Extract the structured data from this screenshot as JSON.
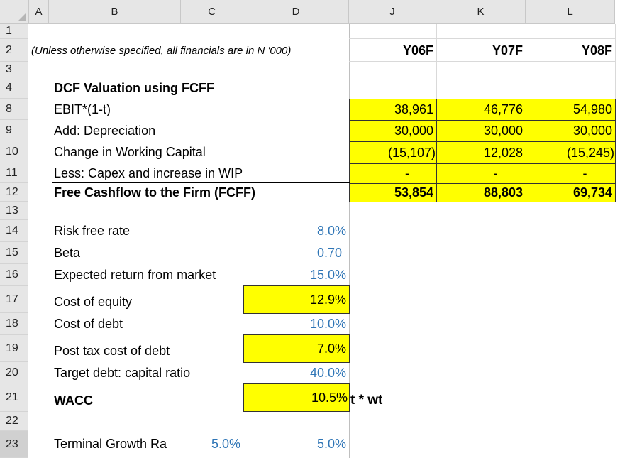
{
  "columns": [
    "A",
    "B",
    "C",
    "D",
    "J",
    "K",
    "L"
  ],
  "rows": [
    "1",
    "2",
    "3",
    "4",
    "8",
    "9",
    "10",
    "11",
    "12",
    "13",
    "14",
    "15",
    "16",
    "17",
    "18",
    "19",
    "20",
    "21",
    "22",
    "23"
  ],
  "note": "(Unless otherwise specified, all financials are in N '000)",
  "years": [
    "Y06F",
    "Y07F",
    "Y08F"
  ],
  "section_title": "DCF Valuation using FCFF",
  "fcff_rows": [
    {
      "label": "EBIT*(1-t)",
      "values": [
        "38,961",
        "46,776",
        "54,980"
      ]
    },
    {
      "label": "Add: Depreciation",
      "values": [
        "30,000",
        "30,000",
        "30,000"
      ]
    },
    {
      "label": "Change in Working Capital",
      "values": [
        "(15,107)",
        "12,028",
        "(15,245)"
      ]
    },
    {
      "label": "Less: Capex and increase in WIP",
      "values": [
        "-",
        "-",
        "-"
      ]
    },
    {
      "label": "Free Cashflow to the Firm (FCFF)",
      "values": [
        "53,854",
        "88,803",
        "69,734"
      ]
    }
  ],
  "inputs": {
    "risk_free": {
      "label": "Risk free rate",
      "value": "8.0%"
    },
    "beta": {
      "label": "Beta",
      "value": "0.70"
    },
    "market_return": {
      "label": "Expected return from market",
      "value": "15.0%"
    },
    "cost_of_equity": {
      "label": "Cost of equity",
      "value": "12.9%"
    },
    "cost_of_debt": {
      "label": "Cost of debt",
      "value": "10.0%"
    },
    "post_tax_cost_of_debt": {
      "label": "Post tax cost of debt",
      "value": "7.0%"
    },
    "target_debt_ratio": {
      "label": "Target debt: capital ratio",
      "value": "40.0%"
    },
    "wacc": {
      "label": "WACC",
      "value": "10.5%",
      "overflow": "t * wt"
    },
    "terminal_growth": {
      "label": "Terminal Growth Ra",
      "value_c": "5.0%",
      "value_d": "5.0%"
    }
  }
}
